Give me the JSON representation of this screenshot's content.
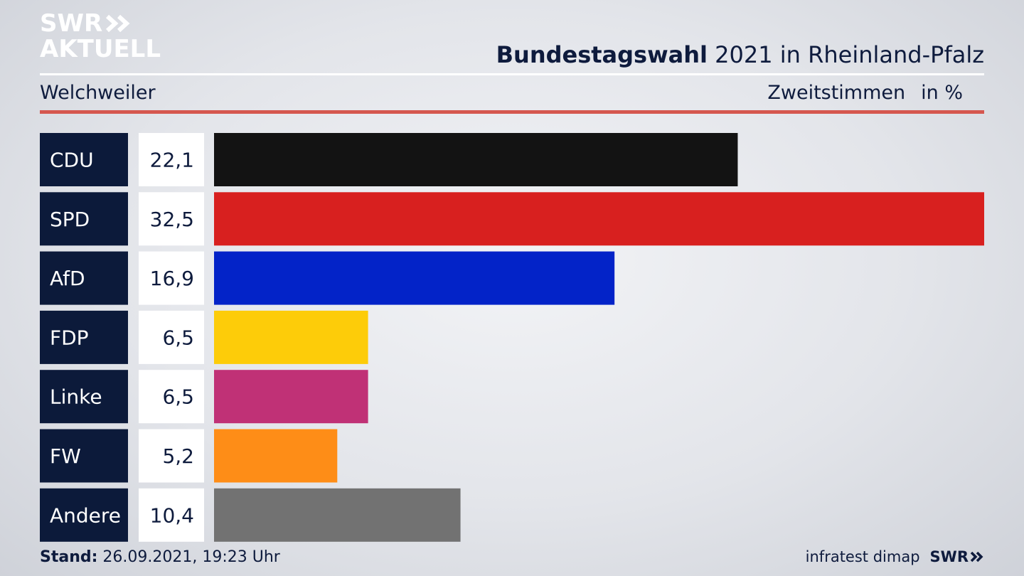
{
  "header": {
    "logo_line1": "SWR",
    "logo_line2": "AKTUELL",
    "title_bold": "Bundestagswahl",
    "title_rest": " 2021 in Rheinland-Pfalz",
    "region": "Welchweiler",
    "measure": "Zweitstimmen",
    "unit": "in %"
  },
  "chart_data": {
    "type": "bar",
    "orientation": "horizontal",
    "categories": [
      "CDU",
      "SPD",
      "AfD",
      "FDP",
      "Linke",
      "FW",
      "Andere"
    ],
    "values": [
      22.1,
      32.5,
      16.9,
      6.5,
      6.5,
      5.2,
      10.4
    ],
    "value_labels": [
      "22,1",
      "32,5",
      "16,9",
      "6,5",
      "6,5",
      "5,2",
      "10,4"
    ],
    "colors": [
      "#131313",
      "#d8201f",
      "#0323c8",
      "#fdcc09",
      "#c03176",
      "#fe8d17",
      "#727272"
    ],
    "xlim": [
      0,
      32.5
    ]
  },
  "footer": {
    "stand_label": "Stand:",
    "stand_value": " 26.09.2021, 19:23 Uhr",
    "source": "infratest dimap",
    "brand": "SWR"
  }
}
